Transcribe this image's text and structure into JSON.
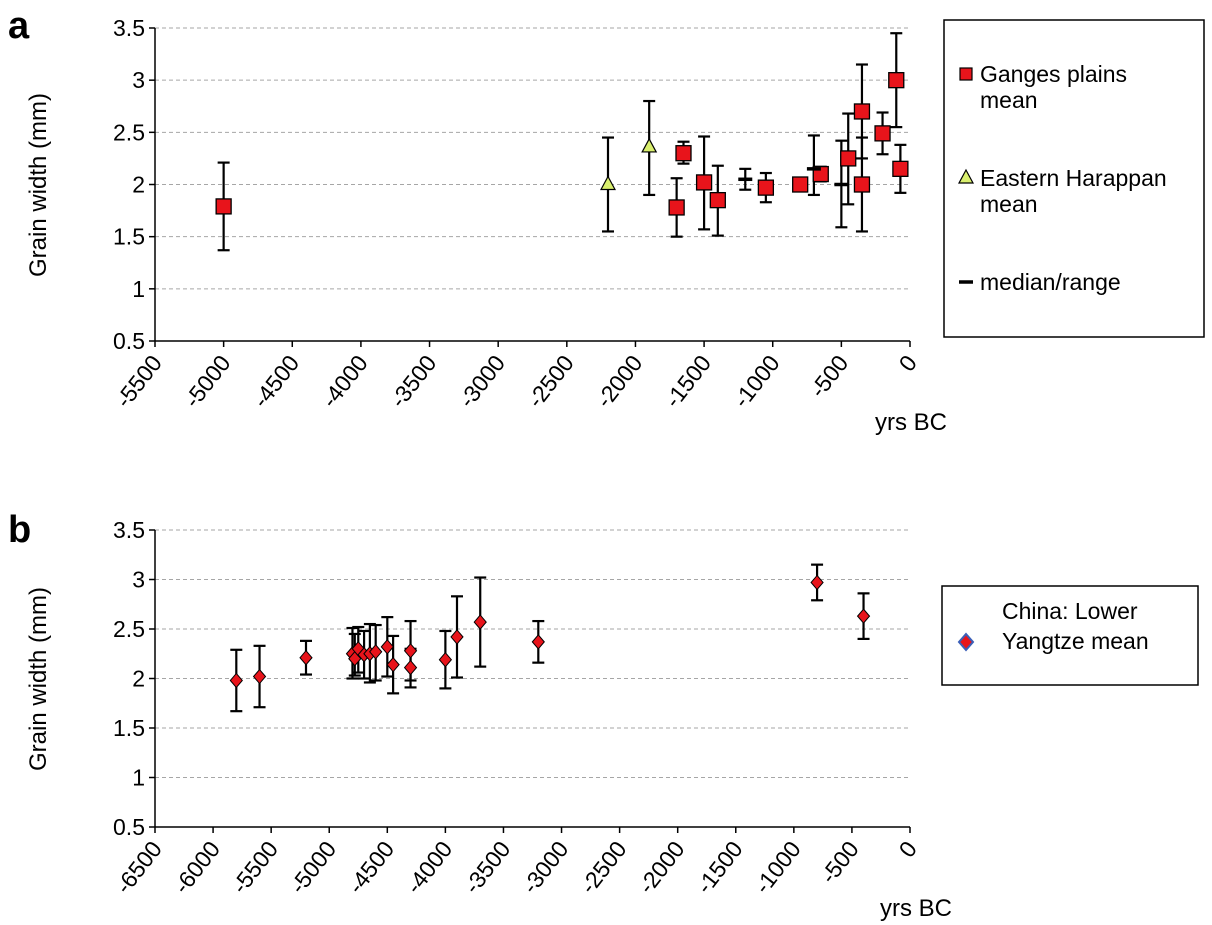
{
  "chart_data": [
    {
      "panel_label": "a",
      "type": "scatter",
      "xlabel": "yrs BC",
      "ylabel": "Grain width (mm)",
      "xlim": [
        -5500,
        0
      ],
      "ylim": [
        0.5,
        3.5
      ],
      "xticks": [
        "-5500",
        "-5000",
        "-4500",
        "-4000",
        "-3500",
        "-3000",
        "-2500",
        "-2000",
        "-1500",
        "-1000",
        "-500",
        "0"
      ],
      "xtick_values": [
        -5500,
        -5000,
        -4500,
        -4000,
        -3500,
        -3000,
        -2500,
        -2000,
        -1500,
        -1000,
        -500,
        0
      ],
      "yticks": [
        "0.5",
        "1",
        "1.5",
        "2",
        "2.5",
        "3",
        "3.5"
      ],
      "ytick_values": [
        0.5,
        1,
        1.5,
        2,
        2.5,
        3,
        3.5
      ],
      "grid": "horizontal dashed",
      "legend_position": "right",
      "legend": [
        {
          "label_lines": [
            "Ganges plains",
            "mean"
          ],
          "marker": "square"
        },
        {
          "label_lines": [
            "Eastern Harappan",
            "mean"
          ],
          "marker": "triangle"
        },
        {
          "label_lines": [
            "median/range"
          ],
          "marker": "dash"
        }
      ],
      "series": [
        {
          "name": "Ganges plains mean",
          "marker": "square",
          "color": "#e8141b",
          "points": [
            {
              "x": -5000,
              "y": 1.79,
              "low": 1.37,
              "high": 2.21
            },
            {
              "x": -1700,
              "y": 1.78,
              "low": 1.5,
              "high": 2.06
            },
            {
              "x": -1650,
              "y": 2.3,
              "low": 2.2,
              "high": 2.41
            },
            {
              "x": -1500,
              "y": 2.02,
              "low": 1.57,
              "high": 2.46
            },
            {
              "x": -1400,
              "y": 1.85,
              "low": 1.51,
              "high": 2.18
            },
            {
              "x": -1050,
              "y": 1.97,
              "low": 1.83,
              "high": 2.11
            },
            {
              "x": -800,
              "y": 2.0,
              "low": 2.0,
              "high": 2.0
            },
            {
              "x": -650,
              "y": 2.1,
              "low": 2.03,
              "high": 2.17
            },
            {
              "x": -450,
              "y": 2.25,
              "low": 1.81,
              "high": 2.68
            },
            {
              "x": -350,
              "y": 2.7,
              "low": 2.25,
              "high": 3.15
            },
            {
              "x": -350,
              "y": 2.0,
              "low": 1.55,
              "high": 2.45
            },
            {
              "x": -200,
              "y": 2.49,
              "low": 2.29,
              "high": 2.69
            },
            {
              "x": -100,
              "y": 3.0,
              "low": 2.55,
              "high": 3.45
            },
            {
              "x": -70,
              "y": 2.15,
              "low": 1.92,
              "high": 2.38
            }
          ]
        },
        {
          "name": "Eastern Harappan mean",
          "marker": "triangle",
          "color": "#d9ef6e",
          "points": [
            {
              "x": -2200,
              "y": 2.0,
              "low": 1.55,
              "high": 2.45
            },
            {
              "x": -1900,
              "y": 2.36,
              "low": 1.9,
              "high": 2.8
            }
          ]
        },
        {
          "name": "median/range",
          "marker": "dash",
          "color": "#000000",
          "points": [
            {
              "x": -1200,
              "y": 2.05,
              "low": 1.95,
              "high": 2.15
            },
            {
              "x": -700,
              "y": 2.15,
              "low": 1.9,
              "high": 2.47
            },
            {
              "x": -500,
              "y": 2.0,
              "low": 1.59,
              "high": 2.42
            }
          ]
        }
      ]
    },
    {
      "panel_label": "b",
      "type": "scatter",
      "xlabel": "yrs BC",
      "ylabel": "Grain width (mm)",
      "xlim": [
        -6500,
        0
      ],
      "ylim": [
        0.5,
        3.5
      ],
      "xticks": [
        "-6500",
        "-6000",
        "-5500",
        "-5000",
        "-4500",
        "-4000",
        "-3500",
        "-3000",
        "-2500",
        "-2000",
        "-1500",
        "-1000",
        "-500",
        "0"
      ],
      "xtick_values": [
        -6500,
        -6000,
        -5500,
        -5000,
        -4500,
        -4000,
        -3500,
        -3000,
        -2500,
        -2000,
        -1500,
        -1000,
        -500,
        0
      ],
      "yticks": [
        "0.5",
        "1",
        "1.5",
        "2",
        "2.5",
        "3",
        "3.5"
      ],
      "ytick_values": [
        0.5,
        1,
        1.5,
        2,
        2.5,
        3,
        3.5
      ],
      "grid": "horizontal dashed",
      "legend_position": "right",
      "legend": [
        {
          "label_lines": [
            "China: Lower",
            "Yangtze mean"
          ],
          "marker": "diamond"
        }
      ],
      "series": [
        {
          "name": "China: Lower Yangtze mean",
          "marker": "diamond",
          "color": "#e8141b",
          "points": [
            {
              "x": -5800,
              "y": 1.98,
              "low": 1.67,
              "high": 2.29
            },
            {
              "x": -5600,
              "y": 2.02,
              "low": 1.71,
              "high": 2.33
            },
            {
              "x": -5200,
              "y": 2.21,
              "low": 2.04,
              "high": 2.38
            },
            {
              "x": -4800,
              "y": 2.25,
              "low": 2.0,
              "high": 2.51
            },
            {
              "x": -4780,
              "y": 2.2,
              "low": 2.03,
              "high": 2.45
            },
            {
              "x": -4750,
              "y": 2.3,
              "low": 2.06,
              "high": 2.52
            },
            {
              "x": -4700,
              "y": 2.24,
              "low": 2.0,
              "high": 2.48
            },
            {
              "x": -4650,
              "y": 2.25,
              "low": 1.96,
              "high": 2.55
            },
            {
              "x": -4600,
              "y": 2.27,
              "low": 1.98,
              "high": 2.54
            },
            {
              "x": -4500,
              "y": 2.32,
              "low": 2.02,
              "high": 2.62
            },
            {
              "x": -4450,
              "y": 2.14,
              "low": 1.85,
              "high": 2.43
            },
            {
              "x": -4300,
              "y": 2.28,
              "low": 1.98,
              "high": 2.58
            },
            {
              "x": -4300,
              "y": 2.11,
              "low": 1.91,
              "high": 2.3
            },
            {
              "x": -4000,
              "y": 2.19,
              "low": 1.9,
              "high": 2.48
            },
            {
              "x": -3900,
              "y": 2.42,
              "low": 2.01,
              "high": 2.83
            },
            {
              "x": -3700,
              "y": 2.57,
              "low": 2.12,
              "high": 3.02
            },
            {
              "x": -3200,
              "y": 2.37,
              "low": 2.16,
              "high": 2.58
            },
            {
              "x": -800,
              "y": 2.97,
              "low": 2.79,
              "high": 3.15
            },
            {
              "x": -400,
              "y": 2.63,
              "low": 2.4,
              "high": 2.86
            }
          ]
        }
      ]
    }
  ]
}
